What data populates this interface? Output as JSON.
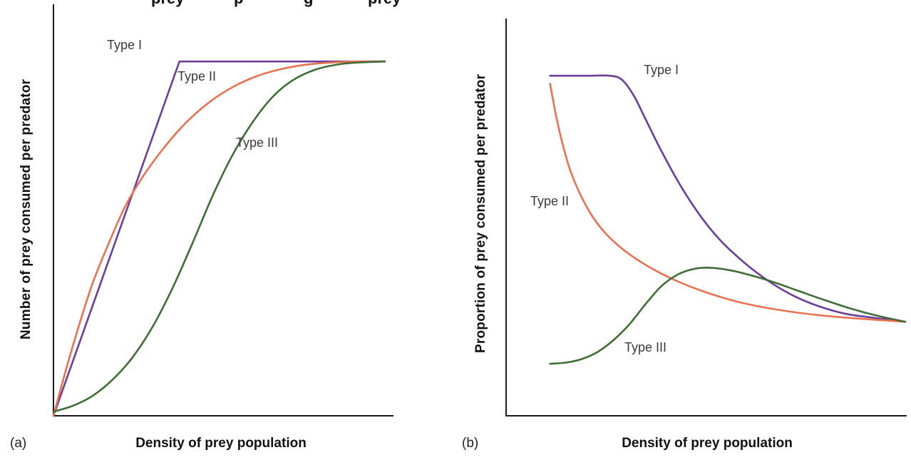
{
  "figure": {
    "cropped_title_fragments": [
      "prey",
      "p",
      "g",
      "prey"
    ]
  },
  "chart_data": [
    {
      "type": "line",
      "panel_label": "(a)",
      "xlabel": "Density of prey population",
      "ylabel": "Number of prey consumed per predator",
      "xlim": [
        0,
        100
      ],
      "ylim": [
        0,
        100
      ],
      "grid": false,
      "axis_ticks": "none",
      "legend": "inline-annotations",
      "series": [
        {
          "name": "Type I",
          "color": "#6b3f99",
          "smooth": false,
          "points": [
            [
              0,
              0
            ],
            [
              38,
              87
            ],
            [
              100,
              87
            ]
          ]
        },
        {
          "name": "Type II",
          "color": "#e97253",
          "smooth": true,
          "points": [
            [
              0,
              0
            ],
            [
              4,
              12
            ],
            [
              8,
              23
            ],
            [
              12,
              33
            ],
            [
              17,
              43
            ],
            [
              22,
              52
            ],
            [
              28,
              60
            ],
            [
              34,
              66.5
            ],
            [
              40,
              72
            ],
            [
              47,
              77
            ],
            [
              54,
              80.7
            ],
            [
              61,
              83.3
            ],
            [
              68,
              85
            ],
            [
              76,
              86.2
            ],
            [
              85,
              86.8
            ],
            [
              92,
              87
            ],
            [
              100,
              87
            ]
          ]
        },
        {
          "name": "Type III",
          "color": "#3f6d35",
          "smooth": true,
          "points": [
            [
              0,
              1
            ],
            [
              6,
              2.5
            ],
            [
              12,
              5
            ],
            [
              18,
              9
            ],
            [
              24,
              14.5
            ],
            [
              30,
              22
            ],
            [
              36,
              31.5
            ],
            [
              42,
              42.5
            ],
            [
              48,
              54
            ],
            [
              54,
              64
            ],
            [
              60,
              72
            ],
            [
              66,
              78.2
            ],
            [
              72,
              82.3
            ],
            [
              79,
              85
            ],
            [
              86,
              86.3
            ],
            [
              93,
              86.8
            ],
            [
              100,
              87
            ]
          ]
        }
      ]
    },
    {
      "type": "line",
      "panel_label": "(b)",
      "xlabel": "Density of prey population",
      "ylabel": "Proportion of prey consumed per predator",
      "xlim": [
        0,
        100
      ],
      "ylim": [
        0,
        100
      ],
      "grid": false,
      "axis_ticks": "none",
      "legend": "inline-annotations",
      "series": [
        {
          "name": "Type I",
          "color": "#6b3f99",
          "smooth": true,
          "points": [
            [
              11,
              85
            ],
            [
              16,
              85
            ],
            [
              21,
              85
            ],
            [
              26,
              85
            ],
            [
              29,
              84
            ],
            [
              32,
              80
            ],
            [
              35,
              74
            ],
            [
              39,
              66
            ],
            [
              44,
              57
            ],
            [
              49,
              49.5
            ],
            [
              54,
              43.5
            ],
            [
              60,
              38
            ],
            [
              66,
              33.5
            ],
            [
              72,
              30
            ],
            [
              78,
              27.5
            ],
            [
              85,
              25.5
            ],
            [
              92,
              24.5
            ],
            [
              100,
              23.5
            ]
          ]
        },
        {
          "name": "Type II",
          "color": "#e97253",
          "smooth": true,
          "points": [
            [
              11,
              83
            ],
            [
              12.5,
              75
            ],
            [
              14,
              68.5
            ],
            [
              16,
              61.5
            ],
            [
              18.5,
              55.5
            ],
            [
              21.5,
              50
            ],
            [
              25,
              45.5
            ],
            [
              29,
              41.8
            ],
            [
              33.5,
              38.6
            ],
            [
              38,
              36
            ],
            [
              43,
              33.6
            ],
            [
              48,
              31.6
            ],
            [
              53,
              29.9
            ],
            [
              58,
              28.5
            ],
            [
              64,
              27.2
            ],
            [
              70,
              26.2
            ],
            [
              76,
              25.4
            ],
            [
              83,
              24.7
            ],
            [
              91,
              24.1
            ],
            [
              100,
              23.5
            ]
          ]
        },
        {
          "name": "Type III",
          "color": "#3f6d35",
          "smooth": true,
          "points": [
            [
              11,
              13
            ],
            [
              15,
              13.3
            ],
            [
              19,
              14.2
            ],
            [
              23,
              16
            ],
            [
              27,
              19
            ],
            [
              31,
              23
            ],
            [
              35,
              28
            ],
            [
              39,
              32.5
            ],
            [
              43,
              35.3
            ],
            [
              47,
              36.7
            ],
            [
              51,
              37
            ],
            [
              56,
              36.4
            ],
            [
              61,
              35.2
            ],
            [
              67,
              33.4
            ],
            [
              73,
              31.3
            ],
            [
              79,
              29.2
            ],
            [
              86,
              26.9
            ],
            [
              93,
              25
            ],
            [
              100,
              23.5
            ]
          ]
        }
      ]
    }
  ]
}
